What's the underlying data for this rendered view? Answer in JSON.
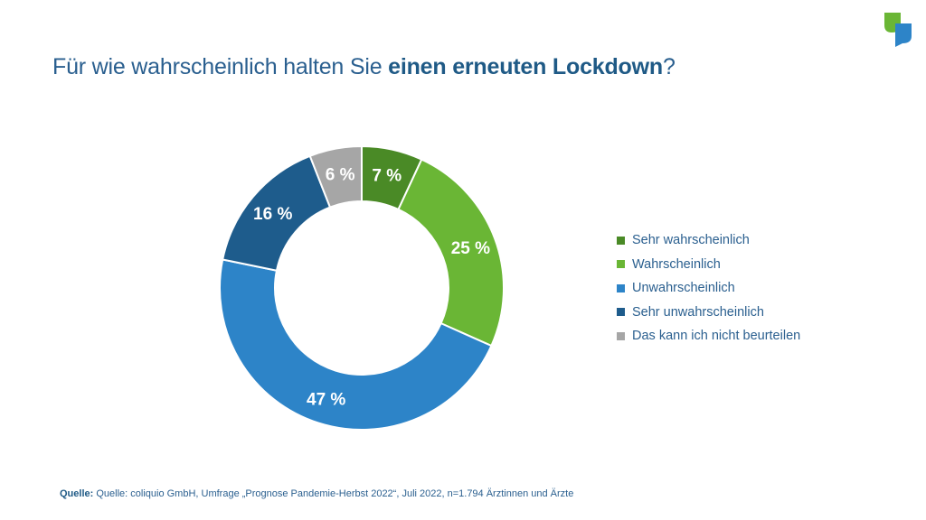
{
  "title": {
    "prefix": "Für wie wahrscheinlich halten Sie ",
    "bold": "einen erneuten Lockdown",
    "suffix": "?"
  },
  "chart_data": {
    "type": "donut",
    "unit": "%",
    "categories": [
      "Sehr wahrscheinlich",
      "Wahrscheinlich",
      "Unwahrscheinlich",
      "Sehr unwahrscheinlich",
      "Das kann ich nicht beurteilen"
    ],
    "values": [
      7,
      25,
      47,
      16,
      6
    ],
    "labels": [
      "7 %",
      "25 %",
      "47 %",
      "16 %",
      "6 %"
    ],
    "colors": [
      "#4a8a26",
      "#6ab635",
      "#2d84c8",
      "#1e5c8c",
      "#a6a6a6"
    ],
    "legend_position": "right"
  },
  "source": {
    "label": "Quelle:",
    "text": " Quelle: coliquio GmbH, Umfrage „Prognose Pandemie-Herbst 2022“, Juli 2022, n=1.794 Ärztinnen und Ärzte"
  }
}
